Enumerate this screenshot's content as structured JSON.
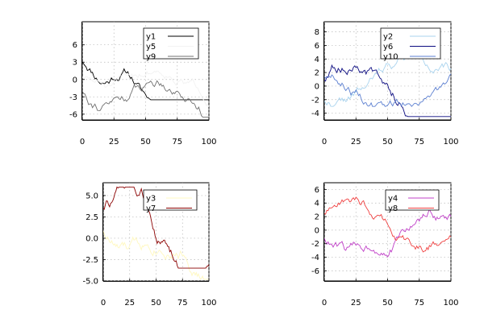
{
  "chart_data": [
    {
      "type": "line",
      "xlim": [
        0,
        100
      ],
      "ylim": [
        -7,
        10
      ],
      "xticks": [
        0,
        25,
        50,
        75,
        100
      ],
      "yticks": [
        -6,
        -3,
        0,
        3,
        6
      ],
      "yticklabels": [
        "-6",
        "-3",
        "0",
        "3",
        "6"
      ],
      "grid": true,
      "legend_position": "top-right",
      "series": [
        {
          "name": "y1",
          "color": "#000000",
          "seed": 11,
          "start": 0.5,
          "amp": 0.55,
          "waves": [
            [
              2.0,
              0.05,
              0.6
            ],
            [
              1.5,
              0.17,
              1.9
            ]
          ],
          "lo": -3.5,
          "hi": 8.5
        },
        {
          "name": "y5",
          "color": "#f2f2f2",
          "seed": 51,
          "start": -0.5,
          "amp": 0.5,
          "waves": [
            [
              1.5,
              0.08,
              2.5
            ]
          ],
          "lo": -6.5,
          "hi": 6
        },
        {
          "name": "y9",
          "color": "#707070",
          "seed": 91,
          "start": -0.5,
          "amp": 0.6,
          "waves": [
            [
              2.5,
              0.06,
              3.8
            ]
          ],
          "lo": -6.5,
          "hi": 7
        }
      ]
    },
    {
      "type": "line",
      "xlim": [
        0,
        100
      ],
      "ylim": [
        -5,
        9.5
      ],
      "xticks": [
        0,
        25,
        50,
        75,
        100
      ],
      "yticks": [
        -4,
        -2,
        0,
        2,
        4,
        6,
        8
      ],
      "yticklabels": [
        "-4",
        "-2",
        "0",
        "2",
        "4",
        "6",
        "8"
      ],
      "grid": true,
      "legend_position": "top-right",
      "series": [
        {
          "name": "y2",
          "color": "#a9d3ee",
          "seed": 22,
          "start": 0.0,
          "amp": 0.5,
          "waves": [
            [
              2.5,
              0.05,
              4.2
            ]
          ],
          "lo": -3,
          "hi": 9
        },
        {
          "name": "y6",
          "color": "#0b0b80",
          "seed": 62,
          "start": 0.0,
          "amp": 0.6,
          "waves": [
            [
              3.0,
              0.055,
              0.3
            ]
          ],
          "lo": -4.5,
          "hi": 6
        },
        {
          "name": "y10",
          "color": "#5b7fd0",
          "seed": 102,
          "start": -0.5,
          "amp": 0.5,
          "waves": [
            [
              2.0,
              0.07,
              1.2
            ]
          ],
          "lo": -3,
          "hi": 6
        }
      ]
    },
    {
      "type": "line",
      "xlim": [
        0,
        100
      ],
      "ylim": [
        -5,
        6.5
      ],
      "xticks": [
        0,
        25,
        50,
        75,
        100
      ],
      "yticks": [
        -5,
        -2.5,
        0,
        2.5,
        5
      ],
      "yticklabels": [
        "-5.0",
        "-2.5",
        "0.0",
        "2.5",
        "5.0"
      ],
      "grid": true,
      "legend_position": "top-right",
      "series": [
        {
          "name": "y3",
          "color": "#fff8c0",
          "seed": 33,
          "start": 0.0,
          "amp": 0.5,
          "waves": [
            [
              2.0,
              0.07,
              2.7
            ]
          ],
          "lo": -4.8,
          "hi": 4
        },
        {
          "name": "y7",
          "color": "#8b0000",
          "seed": 73,
          "start": 0.0,
          "amp": 0.55,
          "waves": [
            [
              4.5,
              0.045,
              0.9
            ]
          ],
          "lo": -3.5,
          "hi": 6
        }
      ]
    },
    {
      "type": "line",
      "xlim": [
        0,
        100
      ],
      "ylim": [
        -7.5,
        7
      ],
      "xticks": [
        0,
        25,
        50,
        75,
        100
      ],
      "yticks": [
        -6,
        -4,
        -2,
        0,
        2,
        4,
        6
      ],
      "yticklabels": [
        "-6",
        "-4",
        "-2",
        "0",
        "2",
        "4",
        "6"
      ],
      "grid": true,
      "legend_position": "top-right",
      "series": [
        {
          "name": "y4",
          "color": "#c040c8",
          "seed": 44,
          "start": 0.0,
          "amp": 0.55,
          "waves": [
            [
              3.5,
              0.05,
              3.5
            ]
          ],
          "lo": -7,
          "hi": 6.5
        },
        {
          "name": "y8",
          "color": "#f04040",
          "seed": 84,
          "start": 1.5,
          "amp": 0.55,
          "waves": [
            [
              2.5,
              0.06,
              0.4
            ]
          ],
          "lo": -6.5,
          "hi": 6.5
        }
      ]
    }
  ]
}
